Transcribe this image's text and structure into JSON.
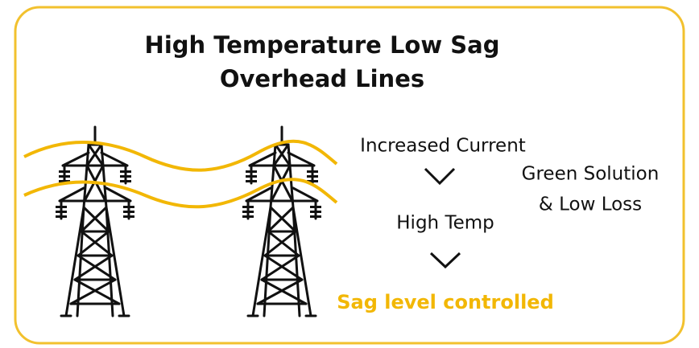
{
  "title": [
    "High Temperature Low Sag",
    "Overhead Lines"
  ],
  "flow": {
    "steps": [
      "Increased Current",
      "High Temp"
    ],
    "result": "Sag level controlled"
  },
  "note": [
    "Green Solution",
    "& Low Loss"
  ]
}
